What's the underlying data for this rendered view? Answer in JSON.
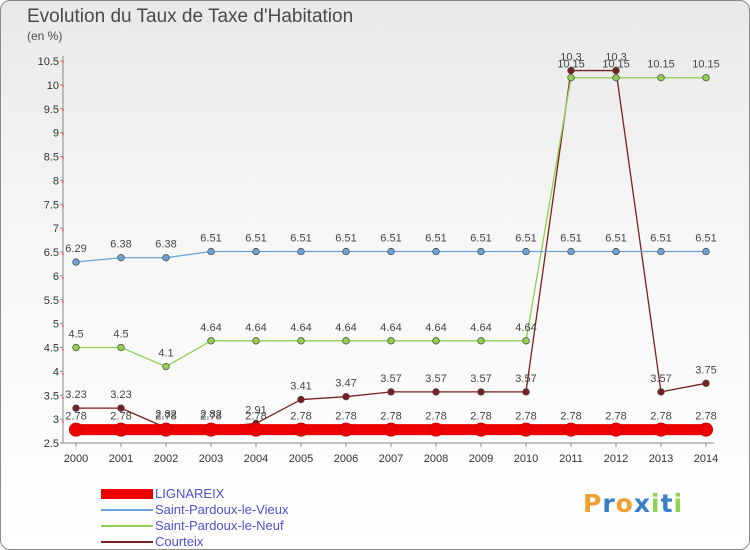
{
  "chart_data": {
    "type": "line",
    "title": "Evolution du Taux de Taxe d'Habitation",
    "subtitle": "(en %)",
    "categories": [
      "2000",
      "2001",
      "2002",
      "2003",
      "2004",
      "2005",
      "2006",
      "2007",
      "2008",
      "2009",
      "2010",
      "2011",
      "2012",
      "2013",
      "2014"
    ],
    "ylim": [
      2.5,
      10.5
    ],
    "yticks": [
      "2.5",
      "3",
      "3.5",
      "4",
      "4.5",
      "5",
      "5.5",
      "6",
      "6.5",
      "7",
      "7.5",
      "8",
      "8.5",
      "9",
      "9.5",
      "10",
      "10.5"
    ],
    "grid": false,
    "legend_position": "bottom-left",
    "series": [
      {
        "name": "LIGNAREIX",
        "color": "#ee0000",
        "values": [
          2.78,
          2.78,
          2.78,
          2.78,
          2.78,
          2.78,
          2.78,
          2.78,
          2.78,
          2.78,
          2.78,
          2.78,
          2.78,
          2.78,
          2.78
        ],
        "labels": [
          "2.78",
          "2.78",
          "2.78",
          "2.78",
          "2.78",
          "2.78",
          "2.78",
          "2.78",
          "2.78",
          "2.78",
          "2.78",
          "2.78",
          "2.78",
          "2.78",
          "2.78"
        ]
      },
      {
        "name": "Saint-Pardoux-le-Vieux",
        "color": "#6aa3d5",
        "values": [
          6.29,
          6.38,
          6.38,
          6.51,
          6.51,
          6.51,
          6.51,
          6.51,
          6.51,
          6.51,
          6.51,
          6.51,
          6.51,
          6.51,
          6.51
        ],
        "labels": [
          "6.29",
          "6.38",
          "6.38",
          "6.51",
          "6.51",
          "6.51",
          "6.51",
          "6.51",
          "6.51",
          "6.51",
          "6.51",
          "6.51",
          "6.51",
          "6.51",
          "6.51"
        ]
      },
      {
        "name": "Saint-Pardoux-le-Neuf",
        "color": "#8fd14f",
        "values": [
          4.5,
          4.5,
          4.1,
          4.64,
          4.64,
          4.64,
          4.64,
          4.64,
          4.64,
          4.64,
          4.64,
          10.15,
          10.15,
          10.15,
          10.15
        ],
        "labels": [
          "4.5",
          "4.5",
          "4.1",
          "4.64",
          "4.64",
          "4.64",
          "4.64",
          "4.64",
          "4.64",
          "4.64",
          "4.64",
          "10.15",
          "10.15",
          "10.15",
          "10.15"
        ]
      },
      {
        "name": "Courteix",
        "color": "#7a1f1f",
        "values": [
          3.23,
          3.23,
          2.82,
          2.82,
          2.91,
          3.41,
          3.47,
          3.57,
          3.57,
          3.57,
          3.57,
          10.3,
          10.3,
          3.57,
          3.75
        ],
        "labels": [
          "3.23",
          "3.23",
          "2.82",
          "2.82",
          "2.91",
          "3.41",
          "3.47",
          "3.57",
          "3.57",
          "3.57",
          "3.57",
          "10.3",
          "10.3",
          "3.57",
          "3.75"
        ]
      }
    ]
  },
  "brand": {
    "text": "Proxiti",
    "letter_colors": [
      "#f0a030",
      "#3a7fc8",
      "#f0a030",
      "#3a7fc8",
      "#8fd14f",
      "#3a7fc8",
      "#8fd14f"
    ]
  }
}
